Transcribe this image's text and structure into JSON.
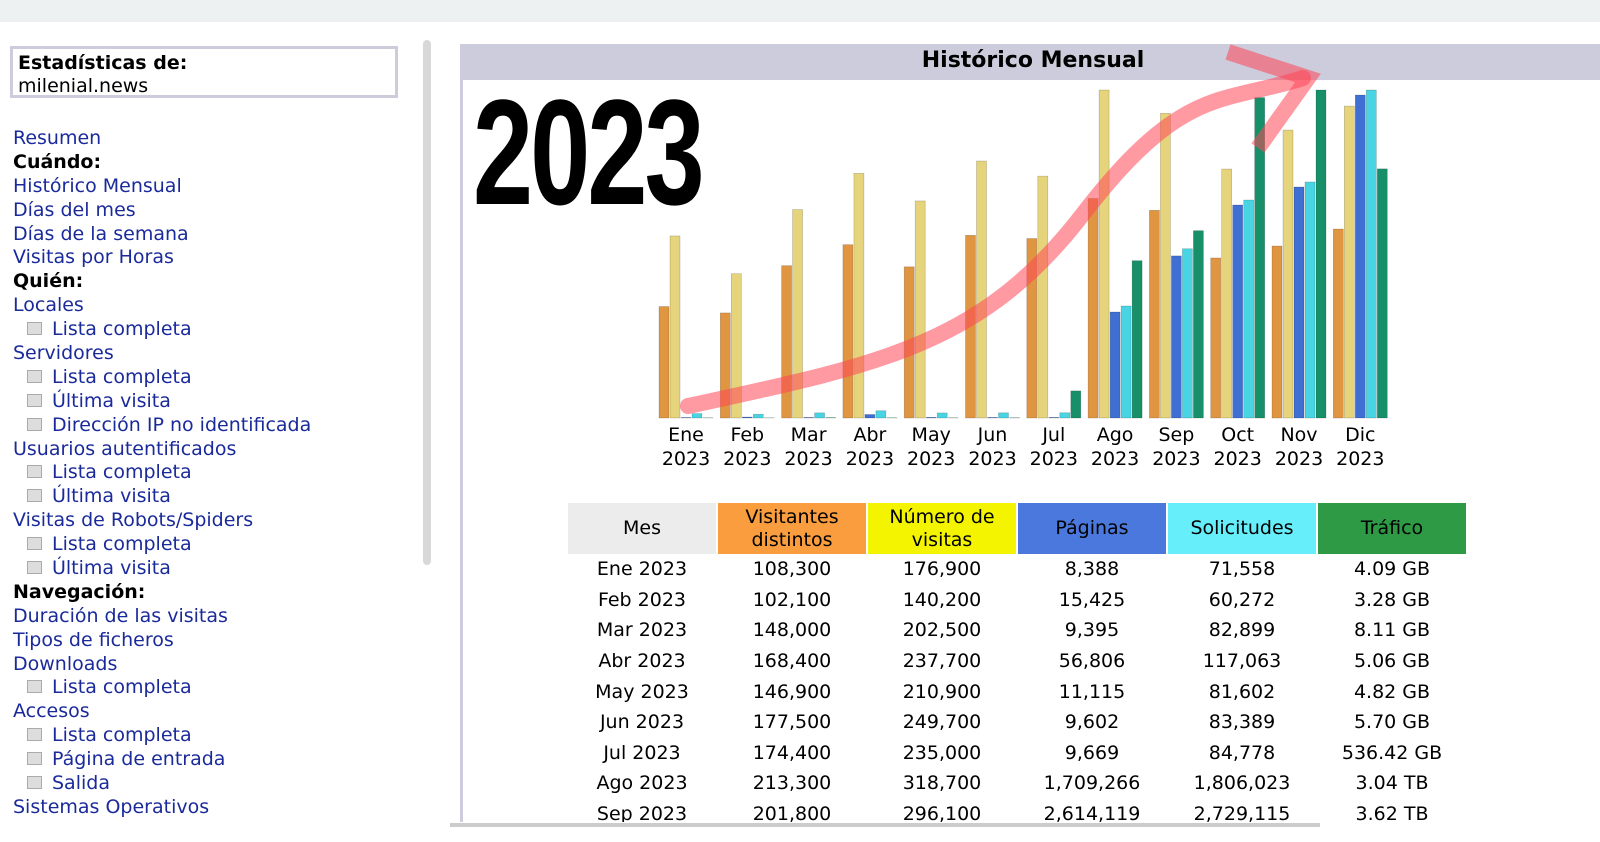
{
  "sidebar": {
    "label": "Estadísticas de:",
    "site": "milenial.news",
    "items": [
      {
        "text": "Resumen",
        "kind": "link"
      },
      {
        "text": "Cuándo:",
        "kind": "heading"
      },
      {
        "text": "Histórico Mensual",
        "kind": "link"
      },
      {
        "text": "Días del mes",
        "kind": "link"
      },
      {
        "text": "Días de la semana",
        "kind": "link"
      },
      {
        "text": "Visitas por Horas",
        "kind": "link"
      },
      {
        "text": "Quién:",
        "kind": "heading"
      },
      {
        "text": "Locales",
        "kind": "link"
      },
      {
        "text": "Lista completa",
        "kind": "sub"
      },
      {
        "text": "Servidores",
        "kind": "link"
      },
      {
        "text": "Lista completa",
        "kind": "sub"
      },
      {
        "text": "Última visita",
        "kind": "sub"
      },
      {
        "text": "Dirección IP no identificada",
        "kind": "sub"
      },
      {
        "text": "Usuarios autentificados",
        "kind": "link"
      },
      {
        "text": "Lista completa",
        "kind": "sub"
      },
      {
        "text": "Última visita",
        "kind": "sub"
      },
      {
        "text": "Visitas de Robots/Spiders",
        "kind": "link"
      },
      {
        "text": "Lista completa",
        "kind": "sub"
      },
      {
        "text": "Última visita",
        "kind": "sub"
      },
      {
        "text": "Navegación:",
        "kind": "heading"
      },
      {
        "text": "Duración de las visitas",
        "kind": "link"
      },
      {
        "text": "Tipos de ficheros",
        "kind": "link"
      },
      {
        "text": "Downloads",
        "kind": "link"
      },
      {
        "text": "Lista completa",
        "kind": "sub"
      },
      {
        "text": "Accesos",
        "kind": "link"
      },
      {
        "text": "Lista completa",
        "kind": "sub"
      },
      {
        "text": "Página de entrada",
        "kind": "sub"
      },
      {
        "text": "Salida",
        "kind": "sub"
      },
      {
        "text": "Sistemas Operativos",
        "kind": "link"
      }
    ]
  },
  "overlay_text": "2023",
  "chart_data": {
    "type": "bar",
    "title": "Histórico Mensual",
    "first_column": "Mes",
    "categories": [
      "Ene 2023",
      "Feb 2023",
      "Mar 2023",
      "Abr 2023",
      "May 2023",
      "Jun 2023",
      "Jul 2023",
      "Ago 2023",
      "Sep 2023",
      "Oct 2023",
      "Nov 2023",
      "Dic 2023"
    ],
    "series": [
      {
        "name": "Visitantes distintos",
        "color": "#e09540",
        "header_color": "#f99d3e",
        "values": [
          108300,
          102100,
          148000,
          168400,
          146900,
          177500,
          174400,
          213300,
          201800,
          155500,
          167100,
          183600
        ],
        "value_labels": [
          "108,300",
          "102,100",
          "148,000",
          "168,400",
          "146,900",
          "177,500",
          "174,400",
          "213,300",
          "201,800",
          null,
          null,
          null
        ]
      },
      {
        "name": "Número de visitas",
        "color": "#e6d47c",
        "header_color": "#f4f400",
        "values": [
          176900,
          140200,
          202500,
          237700,
          210900,
          249700,
          235000,
          318700,
          296100,
          241900,
          279800,
          303100
        ],
        "value_labels": [
          "176,900",
          "140,200",
          "202,500",
          "237,700",
          "210,900",
          "249,700",
          "235,000",
          "318,700",
          "296,100",
          null,
          null,
          null
        ]
      },
      {
        "name": "Páginas",
        "color": "#3f6fd2",
        "header_color": "#4a78dc",
        "values": [
          8388,
          15425,
          9395,
          56806,
          11115,
          9602,
          9669,
          1709266,
          2614119,
          3435000,
          3725000,
          5208000
        ],
        "value_labels": [
          "8,388",
          "15,425",
          "9,395",
          "56,806",
          "11,115",
          "9,602",
          "9,669",
          "1,709,266",
          "2,614,119",
          null,
          null,
          null
        ]
      },
      {
        "name": "Solicitudes",
        "color": "#48d4e2",
        "header_color": "#66eefa",
        "values": [
          71558,
          60272,
          82899,
          117063,
          81602,
          83389,
          84778,
          1806023,
          2729115,
          3515000,
          3806000,
          5289000
        ],
        "value_labels": [
          "71,558",
          "60,272",
          "82,899",
          "117,063",
          "81,602",
          "83,389",
          "84,778",
          "1,806,023",
          "2,729,115",
          null,
          null,
          null
        ]
      },
      {
        "name": "Tráfico",
        "color": "#17906a",
        "header_color": "#2e9a46",
        "values": [
          4.09,
          3.28,
          8.11,
          5.06,
          4.82,
          5.7,
          536.42,
          3112.96,
          3706.88,
          6340,
          6490,
          4930
        ],
        "value_labels": [
          "4.09 GB",
          "3.28 GB",
          "8.11 GB",
          "5.06 GB",
          "4.82 GB",
          "5.70 GB",
          "536.42 GB",
          "3.04 TB",
          "3.62 TB",
          null,
          null,
          null
        ]
      }
    ]
  }
}
